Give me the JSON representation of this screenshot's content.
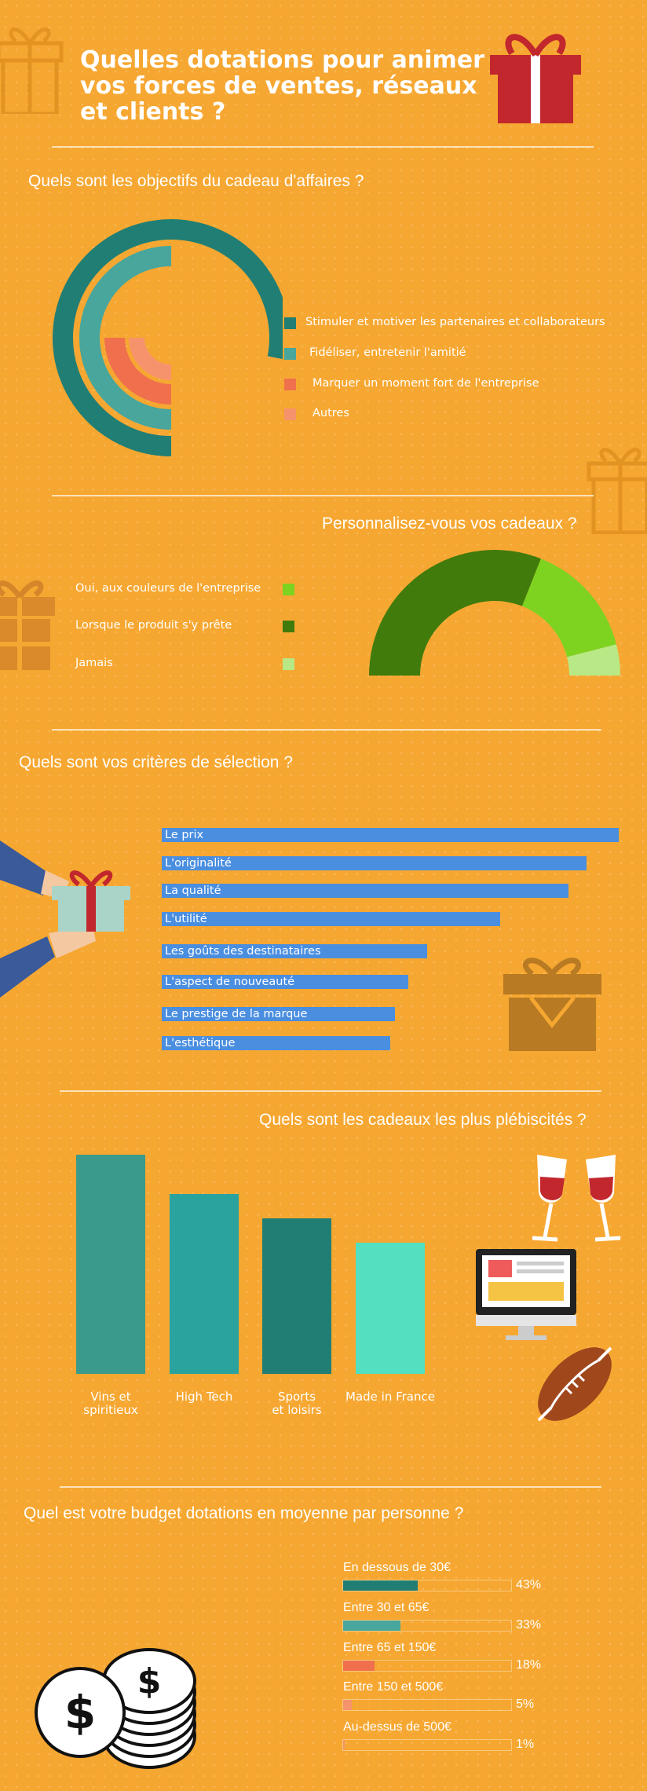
{
  "title": "Quelles dotations pour animer vos forces de ventes, réseaux et clients ?",
  "colors": {
    "background": "#f6a731",
    "teal_dark": "#217e74",
    "teal_mid": "#48a69c",
    "orange_red": "#f0704d",
    "salmon": "#f7936c",
    "green_dark": "#417b0c",
    "green_bright": "#7ed321",
    "green_light": "#b8e986",
    "blue": "#4a8ee0",
    "gift_red": "#c1272d"
  },
  "sections": {
    "objectifs": {
      "question": "Quels sont les objectifs du cadeau d'affaires ?"
    },
    "personnalisation": {
      "question": "Personnalisez-vous vos cadeaux ?"
    },
    "criteres": {
      "question": "Quels sont vos critères de sélection ?"
    },
    "plebiscites": {
      "question": "Quels sont les cadeaux les plus plébiscités ?"
    },
    "budget": {
      "question": "Quel est votre budget dotations en moyenne par personne ?"
    }
  },
  "chart_data": [
    {
      "type": "radial-bar",
      "categories": [
        "Stimuler et motiver les partenaires et collaborateurs",
        "Fidéliser, entretenir l'amitié",
        "Marquer un moment fort de l'entreprise",
        "Autres"
      ],
      "values": [
        0.78,
        0.5,
        0.25,
        0.25
      ],
      "colors": [
        "#217e74",
        "#48a69c",
        "#f0704d",
        "#f7936c"
      ],
      "legend": "right"
    },
    {
      "type": "pie",
      "categories": [
        "Oui, aux couleurs de l'entreprise",
        "Lorsque le produit s'y prête",
        "Jamais"
      ],
      "values": [
        30,
        62,
        8
      ],
      "colors": [
        "#7ed321",
        "#417b0c",
        "#b8e986"
      ],
      "legend": "left"
    },
    {
      "type": "bar",
      "orientation": "horizontal",
      "categories": [
        "Le prix",
        "L'originalité",
        "La qualité",
        "L'utilité",
        "Les goûts des destinataires",
        "L'aspect de nouveauté",
        "Le prestige de la marque",
        "L'esthétique"
      ],
      "values": [
        100,
        93,
        89,
        74,
        58,
        54,
        51,
        50
      ],
      "color": "#4a8ee0"
    },
    {
      "type": "bar",
      "categories": [
        "Vins et\nspiritieux",
        "High Tech",
        "Sports\net loisirs",
        "Made in France"
      ],
      "values": [
        100,
        82,
        71,
        60
      ],
      "colors": [
        "#3a9a8b",
        "#2aa39f",
        "#217e74",
        "#52e0c0"
      ]
    },
    {
      "type": "bar",
      "orientation": "horizontal",
      "categories": [
        "En dessous de 30€",
        "Entre 30 et 65€",
        "Entre 65 et 150€",
        "Entre 150 et 500€",
        "Au-dessus de 500€"
      ],
      "values": [
        43,
        33,
        18,
        5,
        1
      ],
      "labels": [
        "43%",
        "33%",
        "18%",
        "5%",
        "1%"
      ],
      "colors": [
        "#217e74",
        "#48a69c",
        "#f0704d",
        "#f7936c",
        "#f7936c"
      ],
      "xlim": [
        0,
        100
      ]
    }
  ]
}
